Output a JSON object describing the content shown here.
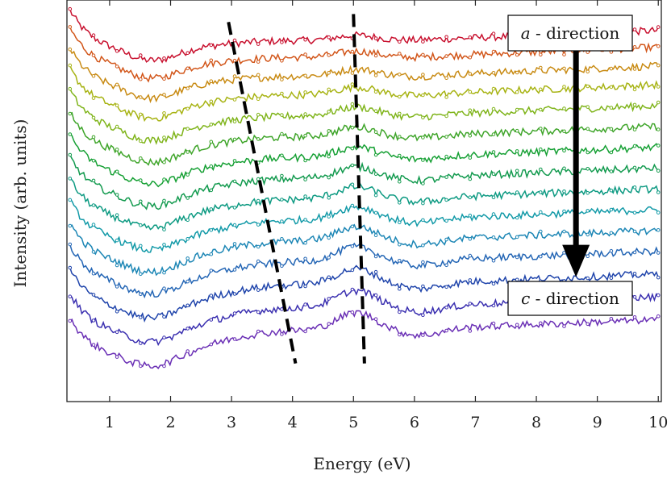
{
  "chart_data": {
    "type": "line",
    "xlabel": "Energy  (eV)",
    "ylabel": "Intensity  (arb. units)",
    "xlim": [
      0.3,
      10.05
    ],
    "ylim": [
      0,
      1
    ],
    "x_ticks": [
      1,
      2,
      3,
      4,
      5,
      6,
      7,
      8,
      9,
      10
    ],
    "y_ticks": [],
    "grid": false,
    "stacked_spectra_count": 15,
    "colors": [
      "#c8102e",
      "#d2561a",
      "#c88a12",
      "#a7b313",
      "#7fb41a",
      "#3fa52a",
      "#16a034",
      "#129a4e",
      "#0d9a82",
      "#139aa8",
      "#1c86b5",
      "#2466b5",
      "#1f44ab",
      "#3a2fb0",
      "#6a2fb5"
    ],
    "feature_lines": [
      {
        "points": [
          [
            2.95,
            0.945
          ],
          [
            4.05,
            0.095
          ]
        ],
        "style": "dashed"
      },
      {
        "points": [
          [
            5.0,
            0.965
          ],
          [
            5.18,
            0.095
          ]
        ],
        "style": "dashed"
      }
    ],
    "annotations": {
      "top": {
        "label": "a",
        "suffix": " - direction"
      },
      "bottom": {
        "label": "c",
        "suffix": " - direction"
      },
      "arrow": {
        "x": 8.65,
        "from_y": 0.885,
        "to_y": 0.33
      }
    },
    "baselines": [
      0.935,
      0.89,
      0.84,
      0.79,
      0.735,
      0.68,
      0.625,
      0.57,
      0.515,
      0.46,
      0.405,
      0.35,
      0.29,
      0.23,
      0.17
    ]
  }
}
